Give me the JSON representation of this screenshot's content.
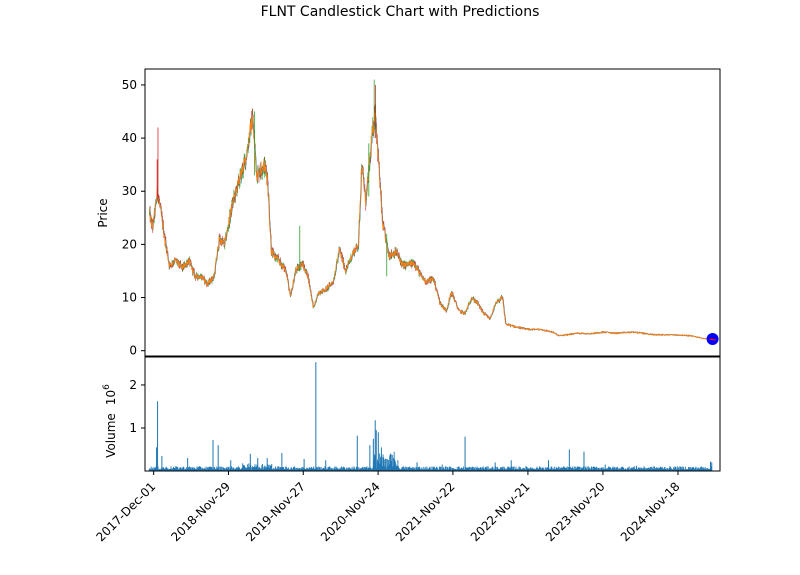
{
  "chart_data": [
    {
      "type": "candlestick",
      "title": "FLNT Candlestick Chart with Predictions",
      "ylabel": "Price",
      "ylim": [
        -1,
        53
      ],
      "yticks": [
        0,
        10,
        20,
        30,
        40,
        50
      ],
      "xlim": [
        "2017-10-20",
        "2025-06-10"
      ],
      "xticks": [
        "2017-Dec-01",
        "2018-Nov-29",
        "2019-Nov-27",
        "2020-Nov-24",
        "2021-Nov-22",
        "2022-Nov-21",
        "2023-Nov-20",
        "2024-Nov-18"
      ],
      "colors": {
        "up": "#2ca02c",
        "down": "#d62728",
        "close_line": "#ff7f0e",
        "open_line": "#1f77b4",
        "prediction": "#0000ff",
        "prediction_marker_inner": "#ff0000"
      },
      "price_path": [
        [
          "2017-11-10",
          26
        ],
        [
          "2017-11-25",
          23
        ],
        [
          "2017-12-20",
          30
        ],
        [
          "2018-01-20",
          22
        ],
        [
          "2018-02-15",
          16
        ],
        [
          "2018-03-15",
          17
        ],
        [
          "2018-04-20",
          15.5
        ],
        [
          "2018-05-20",
          17
        ],
        [
          "2018-06-20",
          14
        ],
        [
          "2018-07-20",
          14
        ],
        [
          "2018-08-20",
          12.5
        ],
        [
          "2018-09-20",
          14
        ],
        [
          "2018-10-15",
          21
        ],
        [
          "2018-11-10",
          20
        ],
        [
          "2018-12-20",
          28
        ],
        [
          "2019-01-20",
          32
        ],
        [
          "2019-02-20",
          36
        ],
        [
          "2019-03-25",
          44
        ],
        [
          "2019-04-15",
          33
        ],
        [
          "2019-05-20",
          35
        ],
        [
          "2019-06-05",
          33
        ],
        [
          "2019-06-25",
          18.5
        ],
        [
          "2019-07-30",
          17
        ],
        [
          "2019-09-05",
          15
        ],
        [
          "2019-09-25",
          10
        ],
        [
          "2019-10-20",
          15
        ],
        [
          "2019-11-20",
          16.5
        ],
        [
          "2019-12-20",
          14
        ],
        [
          "2020-01-15",
          8
        ],
        [
          "2020-02-10",
          11
        ],
        [
          "2020-03-15",
          11.5
        ],
        [
          "2020-04-20",
          13
        ],
        [
          "2020-05-20",
          19
        ],
        [
          "2020-06-20",
          15
        ],
        [
          "2020-07-20",
          18
        ],
        [
          "2020-08-20",
          20
        ],
        [
          "2020-09-05",
          35
        ],
        [
          "2020-09-25",
          28
        ],
        [
          "2020-10-25",
          40
        ],
        [
          "2020-11-10",
          45
        ],
        [
          "2020-11-25",
          36
        ],
        [
          "2020-12-15",
          24
        ],
        [
          "2021-01-15",
          18
        ],
        [
          "2021-02-20",
          18.5
        ],
        [
          "2021-03-25",
          16
        ],
        [
          "2021-05-20",
          16.5
        ],
        [
          "2021-06-20",
          14
        ],
        [
          "2021-07-15",
          13
        ],
        [
          "2021-08-20",
          13.5
        ],
        [
          "2021-09-20",
          9
        ],
        [
          "2021-10-20",
          7.5
        ],
        [
          "2021-11-15",
          11
        ],
        [
          "2021-12-20",
          7.5
        ],
        [
          "2022-01-20",
          7
        ],
        [
          "2022-02-20",
          10
        ],
        [
          "2022-03-20",
          9
        ],
        [
          "2022-04-20",
          7
        ],
        [
          "2022-05-20",
          6
        ],
        [
          "2022-06-20",
          9
        ],
        [
          "2022-07-20",
          10
        ],
        [
          "2022-08-05",
          5
        ],
        [
          "2022-09-20",
          4.5
        ],
        [
          "2022-11-20",
          4
        ],
        [
          "2023-01-20",
          4
        ],
        [
          "2023-03-20",
          3.5
        ],
        [
          "2023-04-20",
          2.8
        ],
        [
          "2023-07-20",
          3.3
        ],
        [
          "2023-09-20",
          3.2
        ],
        [
          "2023-11-20",
          3.5
        ],
        [
          "2024-01-20",
          3.3
        ],
        [
          "2024-04-20",
          3.5
        ],
        [
          "2024-07-20",
          3
        ],
        [
          "2024-10-20",
          3
        ],
        [
          "2025-01-20",
          2.8
        ],
        [
          "2025-03-20",
          2.3
        ],
        [
          "2025-05-01",
          2.2
        ]
      ],
      "spikes": [
        {
          "date": "2017-12-22",
          "high": 42,
          "low": 28,
          "color": "#d62728"
        },
        {
          "date": "2017-12-18",
          "high": 36,
          "low": 29,
          "color": "#d62728"
        },
        {
          "date": "2020-11-05",
          "high": 51,
          "low": 41,
          "color": "#2ca02c"
        },
        {
          "date": "2020-11-12",
          "high": 50,
          "low": 40,
          "color": "#d62728"
        },
        {
          "date": "2020-10-10",
          "high": 39,
          "low": 29,
          "color": "#2ca02c"
        },
        {
          "date": "2019-11-10",
          "high": 23.5,
          "low": 15,
          "color": "#2ca02c"
        },
        {
          "date": "2021-01-05",
          "high": 22,
          "low": 14,
          "color": "#2ca02c"
        },
        {
          "date": "2019-04-05",
          "high": 45,
          "low": 33,
          "color": "#2ca02c"
        }
      ],
      "prediction": {
        "date": "2025-05-05",
        "value": 2.2
      }
    },
    {
      "type": "bar",
      "ylabel": "Volume",
      "yscale_label": "1e6",
      "scale_base": "10",
      "scale_exp": "6",
      "ylim": [
        0,
        2.65
      ],
      "yticks": [
        1,
        2
      ],
      "bar_color": "#1f77b4",
      "volume_spikes": [
        [
          "2017-12-20",
          1.62
        ],
        [
          "2017-12-15",
          0.55
        ],
        [
          "2018-01-10",
          0.35
        ],
        [
          "2018-05-15",
          0.3
        ],
        [
          "2018-09-15",
          0.72
        ],
        [
          "2018-10-10",
          0.6
        ],
        [
          "2018-12-10",
          0.25
        ],
        [
          "2019-03-15",
          0.4
        ],
        [
          "2019-04-20",
          0.3
        ],
        [
          "2019-06-05",
          0.3
        ],
        [
          "2019-08-15",
          0.42
        ],
        [
          "2019-12-01",
          0.28
        ],
        [
          "2020-01-27",
          2.53
        ],
        [
          "2020-03-15",
          0.25
        ],
        [
          "2020-08-15",
          0.82
        ],
        [
          "2020-10-15",
          0.6
        ],
        [
          "2020-11-01",
          0.75
        ],
        [
          "2020-11-10",
          1.18
        ],
        [
          "2020-11-15",
          0.95
        ],
        [
          "2020-11-25",
          0.9
        ],
        [
          "2020-12-10",
          0.55
        ],
        [
          "2021-01-20",
          0.35
        ],
        [
          "2021-06-01",
          0.2
        ],
        [
          "2021-10-01",
          0.15
        ],
        [
          "2022-01-20",
          0.8
        ],
        [
          "2022-06-15",
          0.2
        ],
        [
          "2022-09-01",
          0.25
        ],
        [
          "2023-03-01",
          0.25
        ],
        [
          "2023-06-10",
          0.5
        ],
        [
          "2023-08-20",
          0.45
        ],
        [
          "2023-12-01",
          0.15
        ],
        [
          "2024-05-01",
          0.12
        ],
        [
          "2025-04-25",
          0.22
        ],
        [
          "2025-05-01",
          0.2
        ]
      ]
    }
  ]
}
